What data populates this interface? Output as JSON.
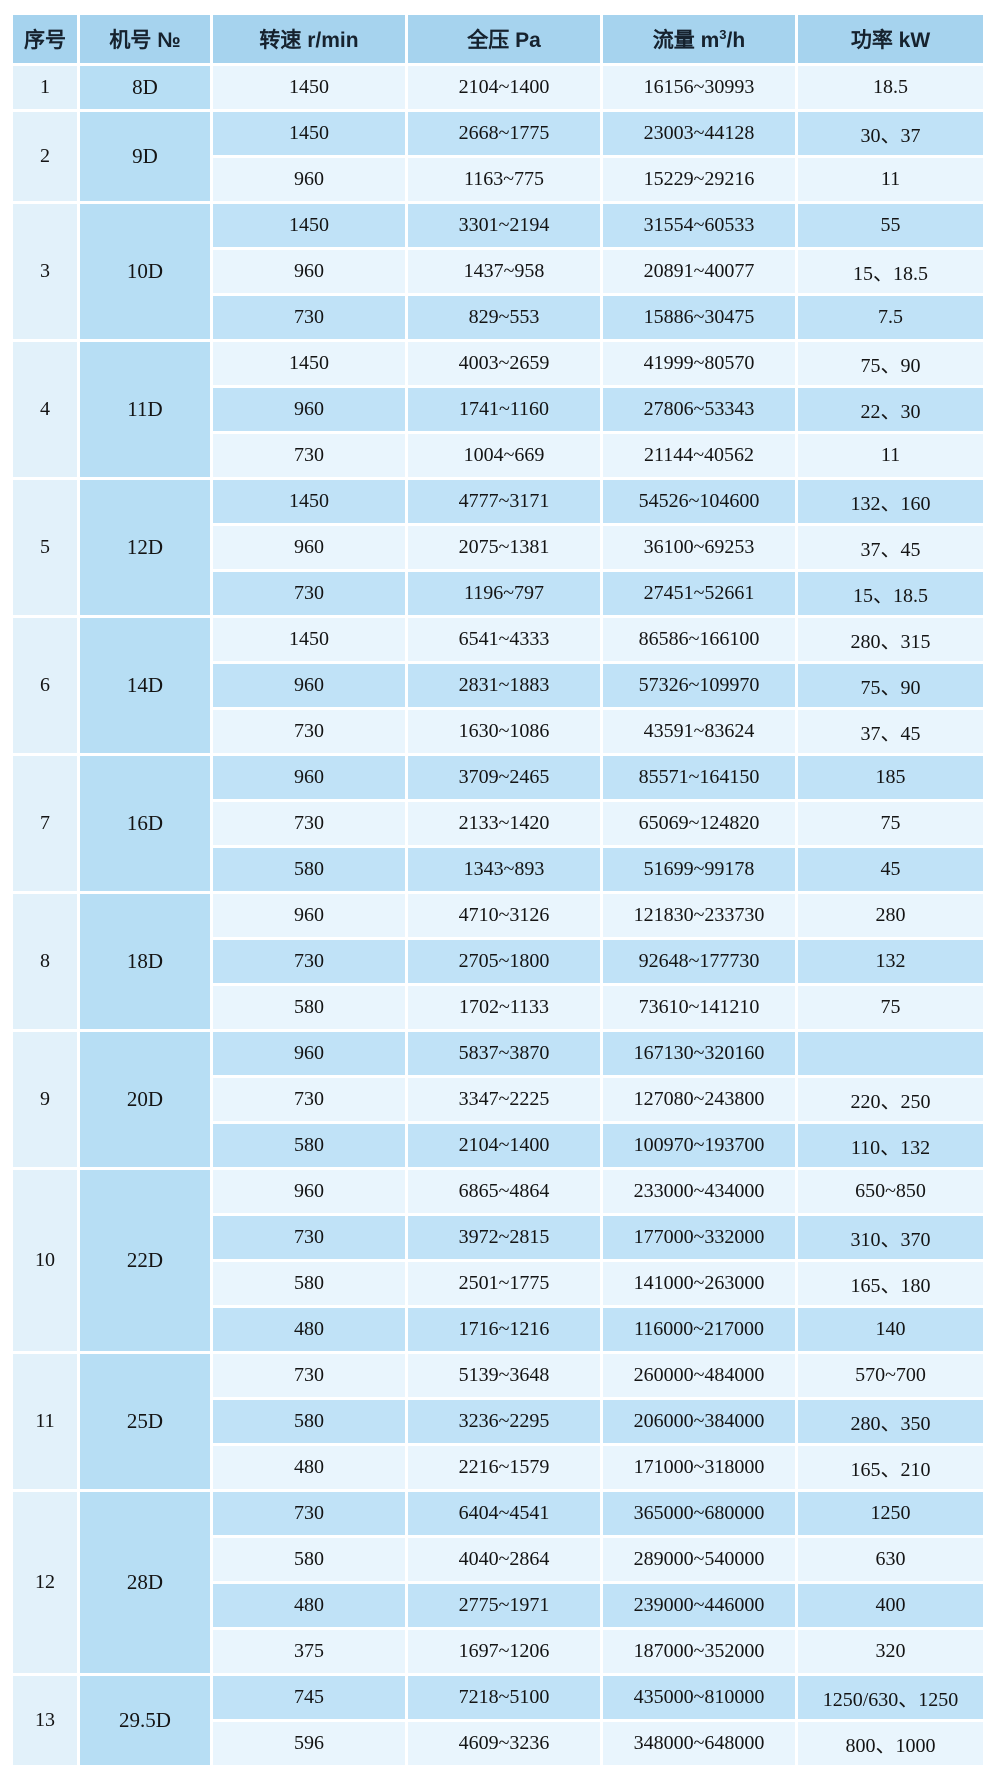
{
  "colors": {
    "header_bg": "#a6d3ee",
    "row_dark": "#c0e2f7",
    "row_light": "#e9f5fd",
    "model_col": "#b7def4",
    "index_col": "#e2f1fa",
    "grid_gap": "#ffffff",
    "header_text": "#16222e",
    "cell_text": "#141414"
  },
  "chart_data": {
    "type": "table",
    "headers": [
      "序号",
      "机号 №",
      "转速 r/min",
      "全压 Pa",
      {
        "text": "流量 m",
        "sup": "3",
        "tail": "/h"
      },
      "功率 kW"
    ],
    "column_keys": [
      "serial",
      "model",
      "speed_rpm",
      "pressure_pa",
      "flow_m3h",
      "power_kw"
    ],
    "groups": [
      {
        "no": "1",
        "model": "8D",
        "rows": [
          [
            "1450",
            "2104~1400",
            "16156~30993",
            "18.5"
          ]
        ]
      },
      {
        "no": "2",
        "model": "9D",
        "rows": [
          [
            "1450",
            "2668~1775",
            "23003~44128",
            "30、37"
          ],
          [
            "960",
            "1163~775",
            "15229~29216",
            "11"
          ]
        ]
      },
      {
        "no": "3",
        "model": "10D",
        "rows": [
          [
            "1450",
            "3301~2194",
            "31554~60533",
            "55"
          ],
          [
            "960",
            "1437~958",
            "20891~40077",
            "15、18.5"
          ],
          [
            "730",
            "829~553",
            "15886~30475",
            "7.5"
          ]
        ]
      },
      {
        "no": "4",
        "model": "11D",
        "rows": [
          [
            "1450",
            "4003~2659",
            "41999~80570",
            "75、90"
          ],
          [
            "960",
            "1741~1160",
            "27806~53343",
            "22、30"
          ],
          [
            "730",
            "1004~669",
            "21144~40562",
            "11"
          ]
        ]
      },
      {
        "no": "5",
        "model": "12D",
        "rows": [
          [
            "1450",
            "4777~3171",
            "54526~104600",
            "132、160"
          ],
          [
            "960",
            "2075~1381",
            "36100~69253",
            "37、45"
          ],
          [
            "730",
            "1196~797",
            "27451~52661",
            "15、18.5"
          ]
        ]
      },
      {
        "no": "6",
        "model": "14D",
        "rows": [
          [
            "1450",
            "6541~4333",
            "86586~166100",
            "280、315"
          ],
          [
            "960",
            "2831~1883",
            "57326~109970",
            "75、90"
          ],
          [
            "730",
            "1630~1086",
            "43591~83624",
            "37、45"
          ]
        ]
      },
      {
        "no": "7",
        "model": "16D",
        "rows": [
          [
            "960",
            "3709~2465",
            "85571~164150",
            "185"
          ],
          [
            "730",
            "2133~1420",
            "65069~124820",
            "75"
          ],
          [
            "580",
            "1343~893",
            "51699~99178",
            "45"
          ]
        ]
      },
      {
        "no": "8",
        "model": "18D",
        "rows": [
          [
            "960",
            "4710~3126",
            "121830~233730",
            "280"
          ],
          [
            "730",
            "2705~1800",
            "92648~177730",
            "132"
          ],
          [
            "580",
            "1702~1133",
            "73610~141210",
            "75"
          ]
        ]
      },
      {
        "no": "9",
        "model": "20D",
        "rows": [
          [
            "960",
            "5837~3870",
            "167130~320160",
            ""
          ],
          [
            "730",
            "3347~2225",
            "127080~243800",
            "220、250"
          ],
          [
            "580",
            "2104~1400",
            "100970~193700",
            "110、132"
          ]
        ]
      },
      {
        "no": "10",
        "model": "22D",
        "rows": [
          [
            "960",
            "6865~4864",
            "233000~434000",
            "650~850"
          ],
          [
            "730",
            "3972~2815",
            "177000~332000",
            "310、370"
          ],
          [
            "580",
            "2501~1775",
            "141000~263000",
            "165、180"
          ],
          [
            "480",
            "1716~1216",
            "116000~217000",
            "140"
          ]
        ]
      },
      {
        "no": "11",
        "model": "25D",
        "rows": [
          [
            "730",
            "5139~3648",
            "260000~484000",
            "570~700"
          ],
          [
            "580",
            "3236~2295",
            "206000~384000",
            "280、350"
          ],
          [
            "480",
            "2216~1579",
            "171000~318000",
            "165、210"
          ]
        ]
      },
      {
        "no": "12",
        "model": "28D",
        "rows": [
          [
            "730",
            "6404~4541",
            "365000~680000",
            "1250"
          ],
          [
            "580",
            "4040~2864",
            "289000~540000",
            "630"
          ],
          [
            "480",
            "2775~1971",
            "239000~446000",
            "400"
          ],
          [
            "375",
            "1697~1206",
            "187000~352000",
            "320"
          ]
        ]
      },
      {
        "no": "13",
        "model": "29.5D",
        "rows": [
          [
            "745",
            "7218~5100",
            "435000~810000",
            "1250/630、1250"
          ],
          [
            "596",
            "4609~3236",
            "348000~648000",
            "800、1000"
          ]
        ]
      }
    ]
  }
}
